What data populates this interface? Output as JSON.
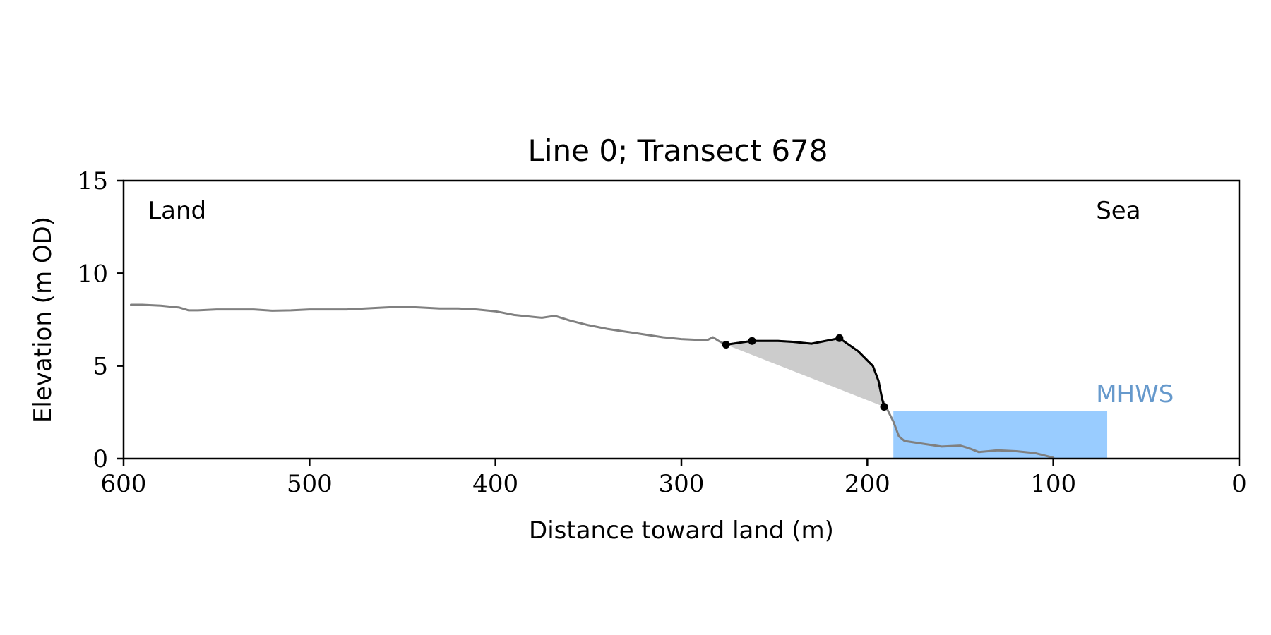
{
  "chart_data": {
    "type": "line",
    "title": "Line 0; Transect 678",
    "xlabel": "Distance toward land (m)",
    "ylabel": "Elevation (m OD)",
    "xlim": [
      600,
      0
    ],
    "ylim": [
      0,
      15
    ],
    "x_ticks": [
      600,
      500,
      400,
      300,
      200,
      100,
      0
    ],
    "y_ticks": [
      0,
      5,
      10,
      15
    ],
    "x_tick_labels": [
      "600",
      "500",
      "400",
      "300",
      "200",
      "100",
      "0"
    ],
    "y_tick_labels": [
      "0",
      "5",
      "10",
      "15"
    ],
    "grid": false,
    "annotations": [
      {
        "text": "Land",
        "x": 587,
        "y": 13.4,
        "color": "#000000"
      },
      {
        "text": "Sea",
        "x": 77,
        "y": 13.4,
        "color": "#000000"
      },
      {
        "text": "MHWS",
        "x": 77,
        "y": 3.5,
        "color": "#6699cc"
      }
    ],
    "mhws_band": {
      "x_from": 186,
      "x_to": 71,
      "y_from": 0,
      "y_to": 2.55,
      "color": "#99ccff"
    },
    "series": [
      {
        "role": "profile",
        "color": "#808080",
        "points": [
          [
            596,
            8.3
          ],
          [
            590,
            8.3
          ],
          [
            580,
            8.25
          ],
          [
            570,
            8.15
          ],
          [
            565,
            8.0
          ],
          [
            560,
            8.0
          ],
          [
            550,
            8.05
          ],
          [
            540,
            8.05
          ],
          [
            530,
            8.05
          ],
          [
            520,
            7.98
          ],
          [
            510,
            8.0
          ],
          [
            500,
            8.05
          ],
          [
            490,
            8.05
          ],
          [
            480,
            8.05
          ],
          [
            470,
            8.1
          ],
          [
            460,
            8.15
          ],
          [
            450,
            8.2
          ],
          [
            440,
            8.15
          ],
          [
            430,
            8.1
          ],
          [
            420,
            8.1
          ],
          [
            410,
            8.05
          ],
          [
            400,
            7.95
          ],
          [
            390,
            7.75
          ],
          [
            380,
            7.65
          ],
          [
            375,
            7.6
          ],
          [
            368,
            7.7
          ],
          [
            360,
            7.45
          ],
          [
            350,
            7.2
          ],
          [
            340,
            7.0
          ],
          [
            330,
            6.85
          ],
          [
            320,
            6.7
          ],
          [
            310,
            6.55
          ],
          [
            300,
            6.45
          ],
          [
            290,
            6.4
          ],
          [
            286,
            6.4
          ],
          [
            283,
            6.55
          ],
          [
            280,
            6.35
          ],
          [
            276,
            6.15
          ],
          [
            262,
            6.35
          ],
          [
            248,
            6.35
          ],
          [
            240,
            6.3
          ],
          [
            230,
            6.2
          ],
          [
            215,
            6.5
          ],
          [
            205,
            5.8
          ],
          [
            197,
            5.0
          ],
          [
            194,
            4.2
          ],
          [
            192,
            3.2
          ],
          [
            190,
            2.8
          ],
          [
            186,
            2.0
          ],
          [
            183,
            1.2
          ],
          [
            180,
            0.95
          ],
          [
            170,
            0.8
          ],
          [
            160,
            0.65
          ],
          [
            150,
            0.7
          ],
          [
            145,
            0.55
          ],
          [
            140,
            0.35
          ],
          [
            130,
            0.45
          ],
          [
            120,
            0.4
          ],
          [
            110,
            0.3
          ],
          [
            100,
            0.05
          ]
        ]
      },
      {
        "role": "cliff",
        "color": "#000000",
        "points": [
          [
            276,
            6.15
          ],
          [
            262,
            6.35
          ],
          [
            248,
            6.35
          ],
          [
            240,
            6.3
          ],
          [
            230,
            6.2
          ],
          [
            215,
            6.5
          ],
          [
            205,
            5.8
          ],
          [
            197,
            5.0
          ],
          [
            194,
            4.2
          ],
          [
            192,
            3.2
          ],
          [
            191,
            2.8
          ]
        ],
        "markers": [
          [
            276,
            6.15
          ],
          [
            262,
            6.35
          ],
          [
            215,
            6.5
          ],
          [
            191,
            2.8
          ]
        ]
      }
    ],
    "fill_area": {
      "color": "#cccccc",
      "upper": [
        [
          276,
          6.15
        ],
        [
          262,
          6.35
        ],
        [
          248,
          6.35
        ],
        [
          240,
          6.3
        ],
        [
          230,
          6.2
        ],
        [
          215,
          6.5
        ],
        [
          205,
          5.8
        ],
        [
          197,
          5.0
        ],
        [
          194,
          4.2
        ],
        [
          192,
          3.2
        ],
        [
          191,
          2.8
        ]
      ],
      "lower": [
        [
          276,
          6.15
        ],
        [
          191,
          2.8
        ]
      ]
    }
  }
}
